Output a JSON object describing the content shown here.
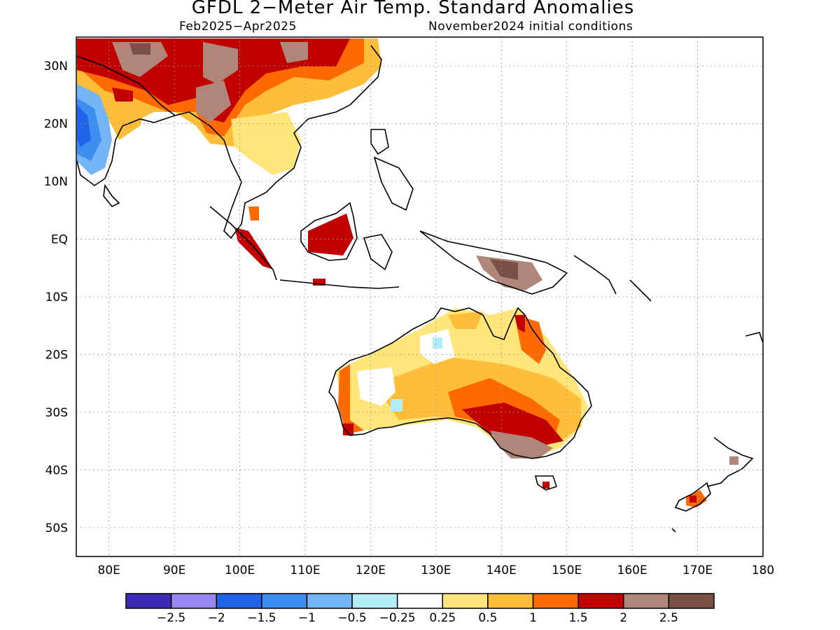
{
  "header": {
    "title": "GFDL 2−Meter Air Temp. Standard Anomalies",
    "period": "Feb2025−Apr2025",
    "init": "November2024 initial conditions"
  },
  "map": {
    "lon_range": [
      75,
      180
    ],
    "lat_range": [
      -55,
      35
    ],
    "lat_ticks": [
      {
        "value": 30,
        "label": "30N"
      },
      {
        "value": 20,
        "label": "20N"
      },
      {
        "value": 10,
        "label": "10N"
      },
      {
        "value": 0,
        "label": "EQ"
      },
      {
        "value": -10,
        "label": "10S"
      },
      {
        "value": -20,
        "label": "20S"
      },
      {
        "value": -30,
        "label": "30S"
      },
      {
        "value": -40,
        "label": "40S"
      },
      {
        "value": -50,
        "label": "50S"
      }
    ],
    "lon_ticks": [
      {
        "value": 80,
        "label": "80E"
      },
      {
        "value": 90,
        "label": "90E"
      },
      {
        "value": 100,
        "label": "100E"
      },
      {
        "value": 110,
        "label": "110E"
      },
      {
        "value": 120,
        "label": "120E"
      },
      {
        "value": 130,
        "label": "130E"
      },
      {
        "value": 140,
        "label": "140E"
      },
      {
        "value": 150,
        "label": "150E"
      },
      {
        "value": 160,
        "label": "160E"
      },
      {
        "value": 170,
        "label": "170E"
      },
      {
        "value": 180,
        "label": "180"
      }
    ],
    "grid": true
  },
  "colorbar": {
    "colors": [
      "#3d2bb5",
      "#9a86f2",
      "#1f63e6",
      "#3c8ff0",
      "#74b5f7",
      "#b3edf7",
      "#ffffff",
      "#ffe57a",
      "#ffbe3a",
      "#ff6a00",
      "#c10000",
      "#b0867b",
      "#7a5044"
    ],
    "labels": [
      "−2.5",
      "−2",
      "−1.5",
      "−1",
      "−0.5",
      "−0.25",
      "0.25",
      "0.5",
      "1",
      "1.5",
      "2",
      "2.5"
    ]
  },
  "colors": {
    "land_outline": "#000000",
    "grid": "#999999"
  }
}
